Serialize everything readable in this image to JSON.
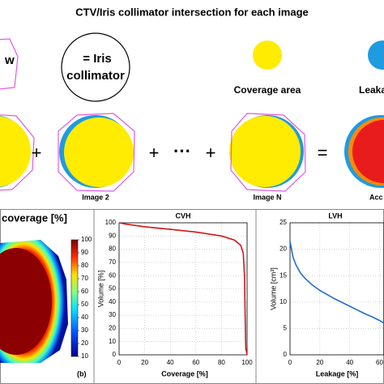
{
  "figure": {
    "title": "CTV/Iris collimator intersection for each image",
    "legend": [
      "w",
      "= Iris",
      "collimator",
      "Coverage area",
      "Leaka"
    ],
    "operators": [
      "+",
      "+",
      "···",
      "+",
      "="
    ],
    "image_labels": [
      "Image 2",
      "Image N",
      "Acc"
    ]
  },
  "colorbar": {
    "title": "coverage [%]",
    "panel_label": "(b)",
    "lim": [
      10,
      100
    ],
    "ticks": [
      100,
      90,
      80,
      70,
      60,
      50,
      40,
      30,
      20,
      10
    ]
  },
  "chart_data": [
    {
      "type": "line",
      "title": "CVH",
      "x_label": "Coverage [%]",
      "y_label": "Volume [%]",
      "x": [
        0,
        5,
        20,
        40,
        60,
        80,
        90,
        95,
        97,
        98,
        98.5,
        99,
        100
      ],
      "series": [
        {
          "name": "CVH",
          "color": "#d4161b",
          "values": [
            100,
            99,
            97,
            95,
            93,
            90,
            87,
            83,
            77,
            60,
            30,
            5,
            0
          ]
        }
      ],
      "xlim": [
        0,
        100
      ],
      "ylim": [
        0,
        100
      ],
      "xticks": [
        0,
        20,
        40,
        60,
        80,
        100
      ],
      "yticks": [
        0,
        10,
        20,
        30,
        40,
        50,
        60,
        70,
        80,
        90,
        100
      ],
      "grid": true
    },
    {
      "type": "line",
      "title": "LVH",
      "x_label": "Leakage [%]",
      "y_label": "Volume [cm³]",
      "x": [
        0,
        1,
        2,
        4,
        7,
        10,
        15,
        20,
        30,
        40,
        50,
        55,
        60,
        63
      ],
      "series": [
        {
          "name": "LVH",
          "color": "#1f6fd0",
          "values": [
            21.5,
            20,
            18.5,
            17,
            15.5,
            14.5,
            13.2,
            12.2,
            10.6,
            9.2,
            7.8,
            7.2,
            6.5,
            6
          ]
        }
      ],
      "xlim": [
        0,
        63
      ],
      "ylim": [
        0,
        25
      ],
      "xticks": [
        0,
        20,
        40,
        60
      ],
      "yticks": [
        0,
        5,
        10,
        15,
        20,
        25
      ],
      "grid": true
    }
  ]
}
